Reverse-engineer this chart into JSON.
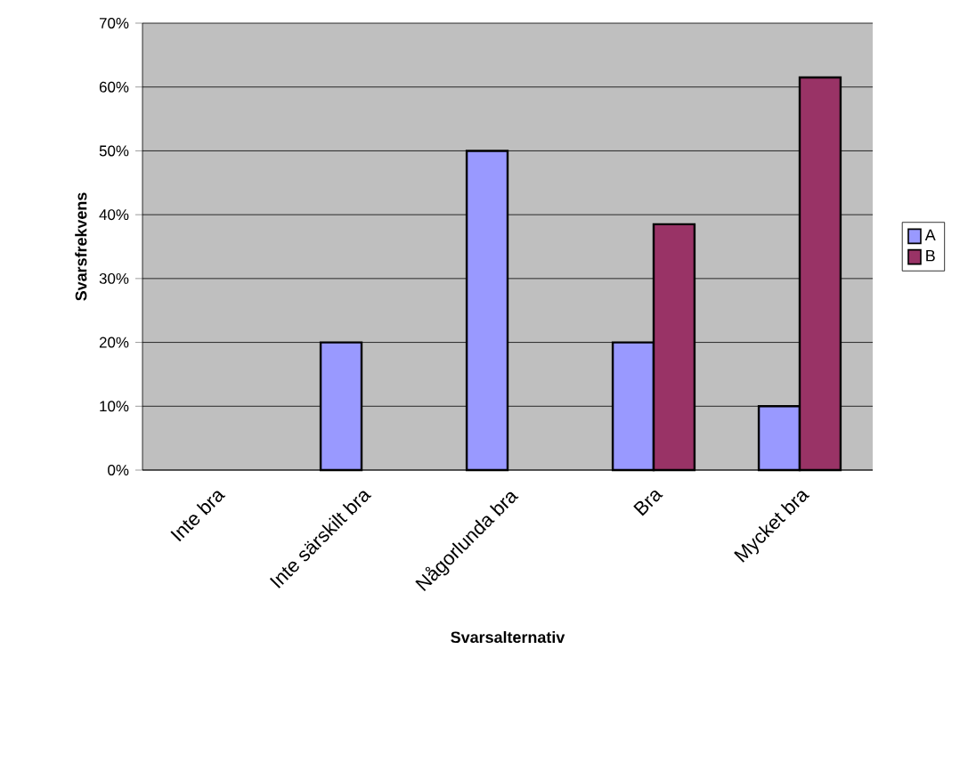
{
  "chart_data": {
    "type": "bar",
    "xlabel": "Svarsalternativ",
    "ylabel": "Svarsfrekvens",
    "categories": [
      "Inte bra",
      "Inte särskilt bra",
      "Någorlunda bra",
      "Bra",
      "Mycket bra"
    ],
    "series": [
      {
        "name": "A",
        "color": "#9999ff",
        "values": [
          null,
          20,
          50,
          20,
          10
        ]
      },
      {
        "name": "B",
        "color": "#993366",
        "values": [
          null,
          null,
          null,
          38.5,
          61.5
        ]
      }
    ],
    "ylim": [
      0,
      70
    ],
    "yticks": [
      {
        "value": 0,
        "label": "0%"
      },
      {
        "value": 10,
        "label": "10%"
      },
      {
        "value": 20,
        "label": "20%"
      },
      {
        "value": 30,
        "label": "30%"
      },
      {
        "value": 40,
        "label": "40%"
      },
      {
        "value": 50,
        "label": "50%"
      },
      {
        "value": 60,
        "label": "60%"
      },
      {
        "value": 70,
        "label": "70%"
      }
    ],
    "grid": "y",
    "legend": "right"
  }
}
